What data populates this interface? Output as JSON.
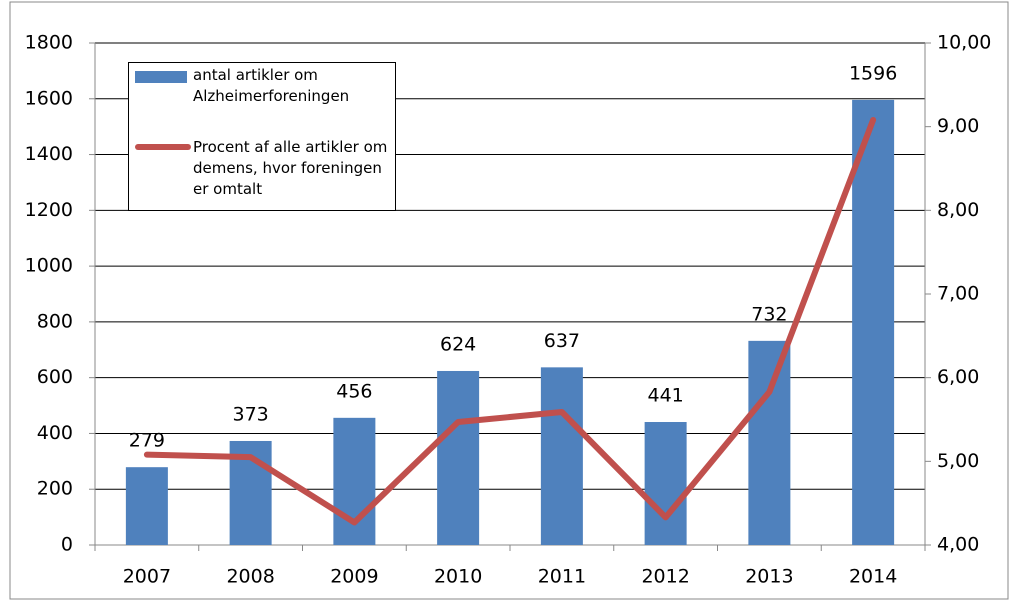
{
  "chart_data": {
    "type": "combo",
    "categories": [
      "2007",
      "2008",
      "2009",
      "2010",
      "2011",
      "2012",
      "2013",
      "2014"
    ],
    "series": [
      {
        "name": "antal artikler om Alzheimerforeningen",
        "type": "bar",
        "color": "#4f81bd",
        "values": [
          279,
          373,
          456,
          624,
          637,
          441,
          732,
          1596
        ]
      },
      {
        "name": "Procent af alle artikler om demens, hvor foreningen er omtalt",
        "type": "line",
        "axis": "y2",
        "color": "#c0504d",
        "values": [
          5.08,
          5.05,
          4.27,
          5.47,
          5.59,
          4.33,
          5.83,
          9.08
        ]
      }
    ],
    "ylim": [
      0,
      1800
    ],
    "yticks": [
      0,
      200,
      400,
      600,
      800,
      1000,
      1200,
      1400,
      1600,
      1800
    ],
    "y2lim": [
      4,
      10
    ],
    "y2ticks": [
      {
        "value": 4,
        "label": "4,00"
      },
      {
        "value": 5,
        "label": "5,00"
      },
      {
        "value": 6,
        "label": "6,00"
      },
      {
        "value": 7,
        "label": "7,00"
      },
      {
        "value": 8,
        "label": "8,00"
      },
      {
        "value": 9,
        "label": "9,00"
      },
      {
        "value": 10,
        "label": "10,00"
      }
    ],
    "grid": true
  }
}
